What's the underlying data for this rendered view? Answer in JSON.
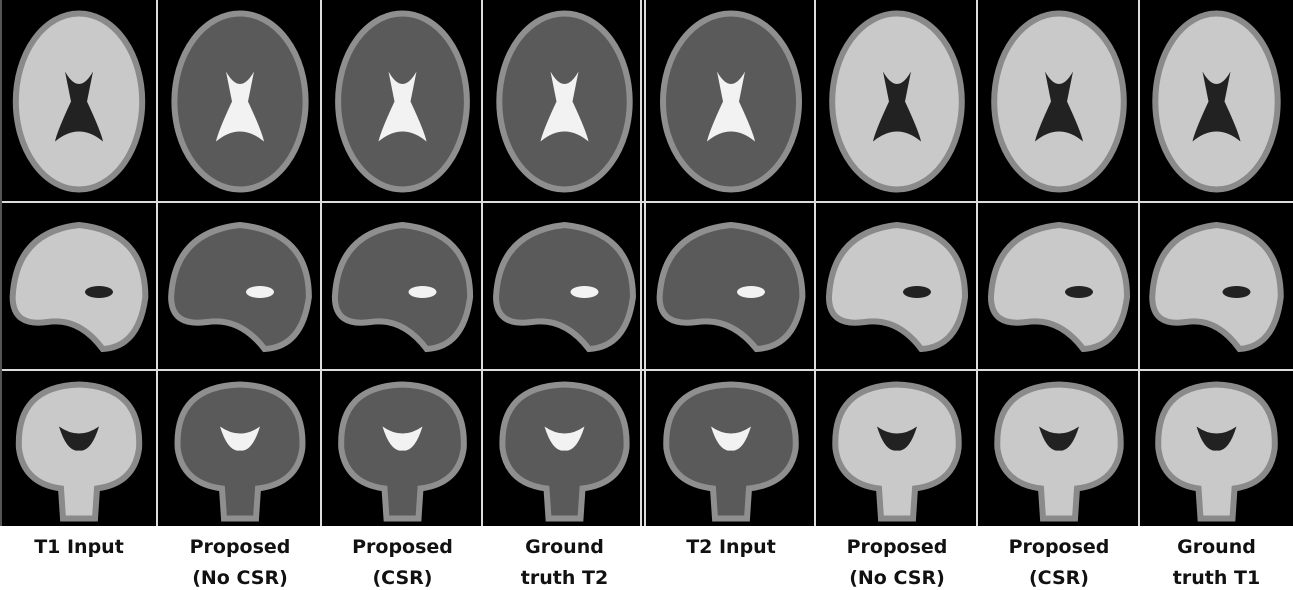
{
  "figure": {
    "columns": [
      {
        "lines": [
          "T1 Input"
        ]
      },
      {
        "lines": [
          "Proposed",
          "(No CSR)"
        ]
      },
      {
        "lines": [
          "Proposed",
          "(CSR)"
        ]
      },
      {
        "lines": [
          "Ground",
          "truth T2"
        ]
      },
      {
        "lines": [
          "T2 Input"
        ]
      },
      {
        "lines": [
          "Proposed",
          "(No CSR)"
        ]
      },
      {
        "lines": [
          "Proposed",
          "(CSR)"
        ]
      },
      {
        "lines": [
          "Ground",
          "truth T1"
        ]
      }
    ]
  }
}
